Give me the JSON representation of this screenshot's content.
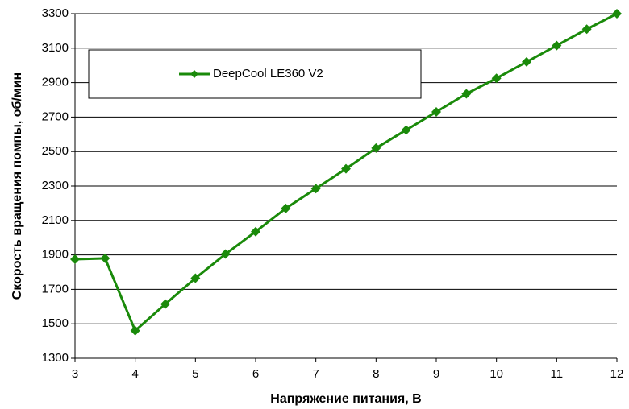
{
  "chart_data": {
    "type": "line",
    "x_label": "Напряжение питания, В",
    "y_label": "Скорость вращения помпы, об/мин",
    "x": [
      3,
      3.5,
      4,
      4.5,
      5,
      5.5,
      6,
      6.5,
      7,
      7.5,
      8,
      8.5,
      9,
      9.5,
      10,
      10.5,
      11,
      11.5,
      12
    ],
    "series": [
      {
        "name": "DeepCool LE360 V2",
        "color": "#1a8a0a",
        "values": [
          1875,
          1880,
          1460,
          1615,
          1765,
          1905,
          2035,
          2170,
          2285,
          2400,
          2520,
          2625,
          2730,
          2835,
          2925,
          3020,
          3115,
          3210,
          3300
        ]
      }
    ],
    "xlim": [
      3,
      12
    ],
    "xticks": [
      3,
      4,
      5,
      6,
      7,
      8,
      9,
      10,
      11,
      12
    ],
    "ylim": [
      1300,
      3300
    ],
    "yticks": [
      1300,
      1500,
      1700,
      1900,
      2100,
      2300,
      2500,
      2700,
      2900,
      3100,
      3300
    ],
    "grid": true,
    "legend": "upper left"
  }
}
